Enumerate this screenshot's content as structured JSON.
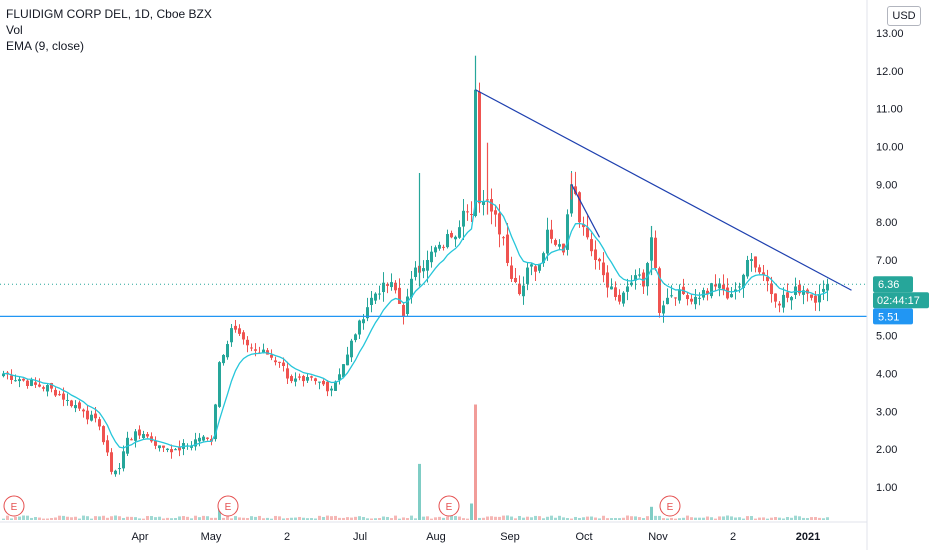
{
  "legend": {
    "symbol": "FLUIDIGM CORP DEL, 1D, Cboe BZX",
    "vol": "Vol",
    "ema": "EMA (9, close)"
  },
  "currency_label": "USD",
  "colors": {
    "up": "#26a69a",
    "down": "#ef5350",
    "ema": "#26c6da",
    "trendline": "#1e40af",
    "support": "#2196f3",
    "last_price_badge": "#26a69a",
    "support_badge": "#2196f3",
    "earnings": "#e55050"
  },
  "chart_data": {
    "type": "candlestick",
    "y_ticks": [
      "13.00",
      "12.00",
      "11.00",
      "10.00",
      "9.00",
      "8.00",
      "7.00",
      "6.00",
      "5.00",
      "4.00",
      "3.00",
      "2.00",
      "1.00"
    ],
    "x_ticks": [
      {
        "label": "Apr",
        "bold": false
      },
      {
        "label": "May",
        "bold": false
      },
      {
        "label": "2",
        "bold": false
      },
      {
        "label": "Jul",
        "bold": false
      },
      {
        "label": "Aug",
        "bold": false
      },
      {
        "label": "Sep",
        "bold": false
      },
      {
        "label": "Oct",
        "bold": false
      },
      {
        "label": "Nov",
        "bold": false
      },
      {
        "label": "2",
        "bold": false
      },
      {
        "label": "2021",
        "bold": true
      }
    ],
    "ylim": [
      0.3,
      13.3
    ],
    "last_price": "6.36",
    "countdown": "02:44:17",
    "support_level": "5.51",
    "support_value": 5.51,
    "earnings_label": "E",
    "earnings_count": 4,
    "trendlines": [
      {
        "from_bar": 118,
        "from_price": 11.5,
        "to_bar": 212,
        "to_price": 6.2
      },
      {
        "from_bar": 142,
        "from_price": 9.0,
        "to_bar": 149,
        "to_price": 7.6
      }
    ],
    "anchor_closes": [
      [
        0,
        4.0
      ],
      [
        4,
        3.85
      ],
      [
        8,
        3.7
      ],
      [
        12,
        3.6
      ],
      [
        16,
        3.3
      ],
      [
        20,
        3.0
      ],
      [
        24,
        2.6
      ],
      [
        27,
        1.4
      ],
      [
        29,
        1.5
      ],
      [
        31,
        2.3
      ],
      [
        35,
        2.4
      ],
      [
        39,
        2.1
      ],
      [
        43,
        2.0
      ],
      [
        46,
        2.1
      ],
      [
        49,
        2.3
      ],
      [
        52,
        2.2
      ],
      [
        54,
        4.3
      ],
      [
        57,
        5.2
      ],
      [
        60,
        4.9
      ],
      [
        63,
        4.6
      ],
      [
        66,
        4.5
      ],
      [
        69,
        4.3
      ],
      [
        72,
        3.8
      ],
      [
        75,
        3.8
      ],
      [
        78,
        3.8
      ],
      [
        82,
        3.6
      ],
      [
        86,
        4.5
      ],
      [
        89,
        5.4
      ],
      [
        92,
        6.0
      ],
      [
        95,
        6.4
      ],
      [
        98,
        6.2
      ],
      [
        100,
        5.5
      ],
      [
        103,
        6.8
      ],
      [
        106,
        7.0
      ],
      [
        109,
        7.4
      ],
      [
        112,
        7.6
      ],
      [
        115,
        8.3
      ],
      [
        117,
        8.2
      ],
      [
        118,
        11.5
      ],
      [
        119,
        8.5
      ],
      [
        121,
        8.6
      ],
      [
        123,
        8.2
      ],
      [
        125,
        7.6
      ],
      [
        127,
        6.5
      ],
      [
        129,
        6.1
      ],
      [
        131,
        6.8
      ],
      [
        134,
        6.9
      ],
      [
        136,
        7.8
      ],
      [
        138,
        7.4
      ],
      [
        140,
        7.2
      ],
      [
        142,
        9.0
      ],
      [
        144,
        8.0
      ],
      [
        146,
        7.6
      ],
      [
        148,
        7.0
      ],
      [
        150,
        6.6
      ],
      [
        152,
        6.3
      ],
      [
        154,
        5.9
      ],
      [
        156,
        6.3
      ],
      [
        158,
        6.6
      ],
      [
        160,
        6.3
      ],
      [
        162,
        7.6
      ],
      [
        164,
        5.6
      ],
      [
        166,
        6.0
      ],
      [
        168,
        6.0
      ],
      [
        170,
        6.1
      ],
      [
        172,
        5.9
      ],
      [
        174,
        6.0
      ],
      [
        176,
        6.1
      ],
      [
        178,
        6.3
      ],
      [
        180,
        6.2
      ],
      [
        182,
        6.1
      ],
      [
        184,
        6.3
      ],
      [
        186,
        7.0
      ],
      [
        188,
        6.8
      ],
      [
        190,
        6.6
      ],
      [
        192,
        6.1
      ],
      [
        194,
        5.8
      ],
      [
        196,
        6.0
      ],
      [
        198,
        6.3
      ],
      [
        200,
        6.2
      ],
      [
        202,
        6.0
      ],
      [
        204,
        6.1
      ],
      [
        206,
        6.36
      ]
    ],
    "volume_spikes": [
      [
        54,
        0.5
      ],
      [
        104,
        1.7
      ],
      [
        118,
        3.5
      ],
      [
        117,
        0.5
      ],
      [
        162,
        0.4
      ]
    ]
  }
}
